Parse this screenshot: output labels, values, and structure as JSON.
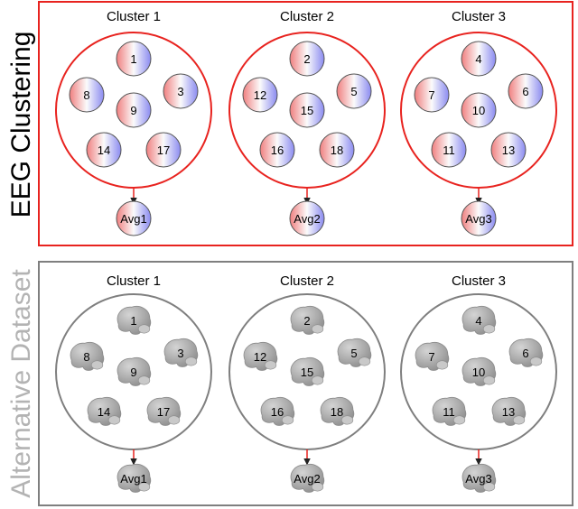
{
  "colors": {
    "eeg_frame": "#e8231f",
    "alt_frame": "#7f7f7f",
    "eeg_title": "#000000",
    "alt_title": "#b3b3b3",
    "arrow": "#e8231f",
    "gradient_red": "#f28b8b",
    "gradient_blue": "#8f8ff2",
    "brain_fill": "#a8a8a8"
  },
  "panels": [
    {
      "id": "eeg",
      "title": "EEG Clustering",
      "style": "eeg",
      "clusters": [
        {
          "title": "Cluster 1",
          "members": [
            "1",
            "8",
            "3",
            "9",
            "14",
            "17"
          ],
          "average": "Avg1"
        },
        {
          "title": "Cluster 2",
          "members": [
            "2",
            "12",
            "5",
            "15",
            "16",
            "18"
          ],
          "average": "Avg2"
        },
        {
          "title": "Cluster 3",
          "members": [
            "4",
            "7",
            "6",
            "10",
            "11",
            "13"
          ],
          "average": "Avg3"
        }
      ]
    },
    {
      "id": "alt",
      "title": "Alternative Dataset",
      "style": "alt",
      "clusters": [
        {
          "title": "Cluster 1",
          "members": [
            "1",
            "8",
            "3",
            "9",
            "14",
            "17"
          ],
          "average": "Avg1"
        },
        {
          "title": "Cluster 2",
          "members": [
            "2",
            "12",
            "5",
            "15",
            "16",
            "18"
          ],
          "average": "Avg2"
        },
        {
          "title": "Cluster 3",
          "members": [
            "4",
            "7",
            "6",
            "10",
            "11",
            "13"
          ],
          "average": "Avg3"
        }
      ]
    }
  ]
}
